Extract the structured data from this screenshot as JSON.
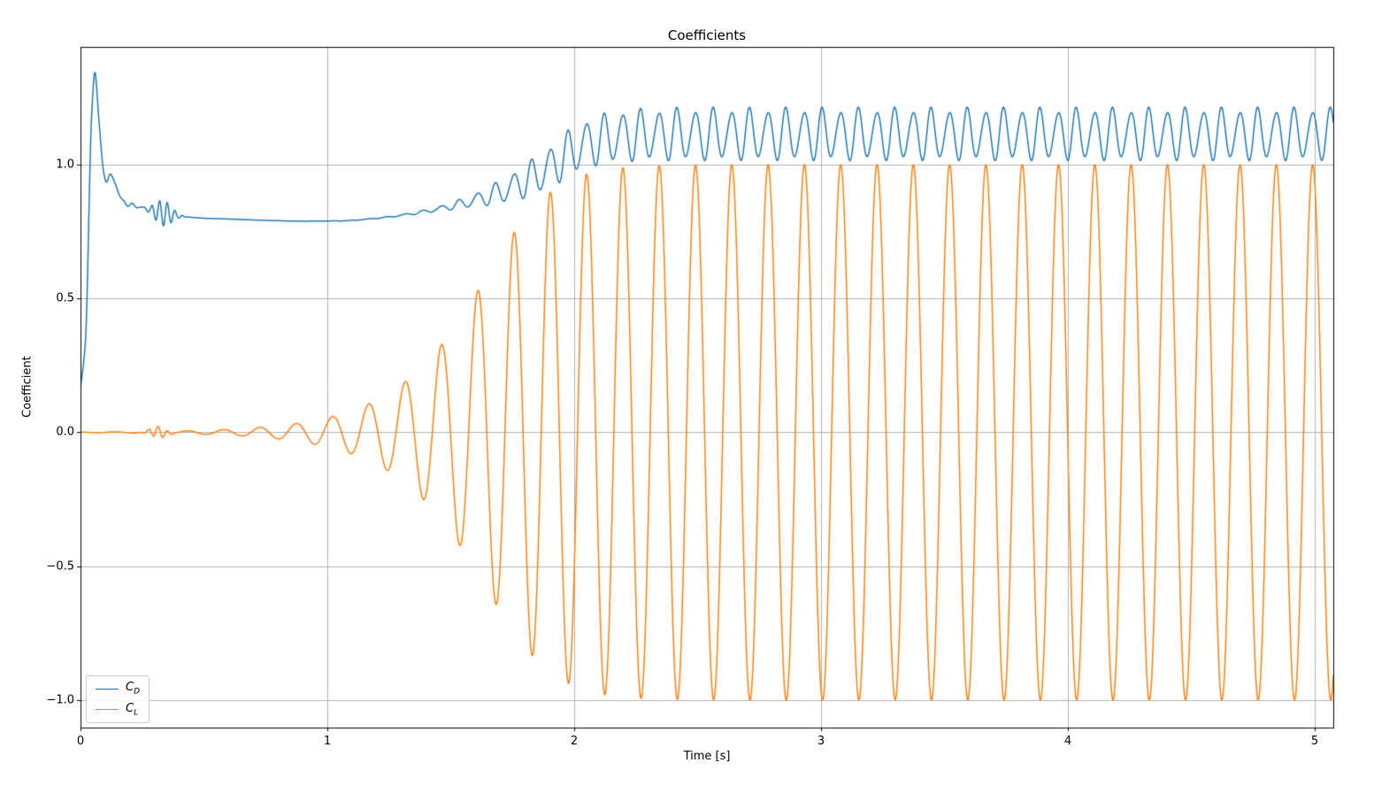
{
  "chart_data": {
    "type": "line",
    "title": "Coefficients",
    "xlabel": "Time [s]",
    "ylabel": "Coefficient",
    "xlim": [
      0,
      5.075
    ],
    "ylim": [
      -1.103,
      1.44
    ],
    "xticks": {
      "values": [
        0,
        1,
        2,
        3,
        4,
        5
      ],
      "labels": [
        "0",
        "1",
        "2",
        "3",
        "4",
        "5"
      ]
    },
    "yticks": {
      "values": [
        -1.0,
        -0.5,
        0.0,
        0.5,
        1.0
      ],
      "labels": [
        "−1.0",
        "−0.5",
        "0.0",
        "0.5",
        "1.0"
      ]
    },
    "grid": true,
    "grid_color": "#b0b0b0",
    "spine_color": "#000000",
    "legend": {
      "position": "lower-left",
      "entries": [
        {
          "label": "C_D",
          "color": "#1f77b4"
        },
        {
          "label": "C_L",
          "color": "#ff7f0e"
        }
      ]
    },
    "shedding_frequency_hz": 6.8,
    "growth_envelope": {
      "a0": 0.001,
      "a_inf": 1.0,
      "sigma": 4.0
    },
    "series": [
      {
        "name": "C_D",
        "label": "C_D",
        "color": "#1f77b4",
        "line_width": 1.5,
        "limit_cycle": {
          "mean": 1.11,
          "peak": 1.21,
          "trough": 1.02
        },
        "model": {
          "mean_keyframes": [
            [
              0,
              0.165
            ],
            [
              0.02,
              0.34
            ],
            [
              0.045,
              1.18
            ],
            [
              0.058,
              1.345
            ],
            [
              0.075,
              1.16
            ],
            [
              0.095,
              0.965
            ],
            [
              0.105,
              0.935
            ],
            [
              0.12,
              0.965
            ],
            [
              0.14,
              0.93
            ],
            [
              0.17,
              0.865
            ],
            [
              0.2,
              0.85
            ],
            [
              0.24,
              0.842
            ],
            [
              0.3,
              0.826
            ],
            [
              0.36,
              0.815
            ],
            [
              0.42,
              0.806
            ],
            [
              0.5,
              0.8
            ],
            [
              0.6,
              0.797
            ],
            [
              0.75,
              0.792
            ],
            [
              0.9,
              0.789
            ],
            [
              1.05,
              0.79
            ],
            [
              1.2,
              0.8
            ],
            [
              1.35,
              0.818
            ],
            [
              1.5,
              0.845
            ],
            [
              1.65,
              0.882
            ],
            [
              1.8,
              0.938
            ],
            [
              1.9,
              0.99
            ],
            [
              2.0,
              1.055
            ],
            [
              2.1,
              1.092
            ],
            [
              2.25,
              1.11
            ],
            [
              2.5,
              1.114
            ],
            [
              5.1,
              1.114
            ]
          ],
          "oscillation": {
            "freq_hz": 13.6,
            "amp": 0.09,
            "phase": 2.4,
            "envelope_power": 2
          },
          "texture": {
            "freq_hz": 20.4,
            "amp": 0.013,
            "phase": 0.3,
            "envelope_power": 2
          },
          "bursts": [
            {
              "center": 0.335,
              "width": 0.048,
              "amp": 0.048,
              "freq_hz": 32,
              "phase": 0
            },
            {
              "center": 0.2,
              "width": 0.04,
              "amp": 0.009,
              "freq_hz": 25,
              "phase": 0
            }
          ]
        }
      },
      {
        "name": "C_L",
        "label": "C_L",
        "color": "#ff7f0e",
        "line_width": 1.5,
        "limit_cycle": {
          "mean": 0.0,
          "peak": 1.0,
          "trough": -1.0
        },
        "model": {
          "mean_keyframes": [
            [
              0,
              0
            ],
            [
              5.1,
              0
            ]
          ],
          "oscillation": {
            "freq_hz": 6.8,
            "amp": 1.0,
            "phase": 1.94,
            "envelope_power": 1
          },
          "bursts": [
            {
              "center": 0.315,
              "width": 0.042,
              "amp": 0.021,
              "freq_hz": 26,
              "phase": 0.5
            }
          ]
        }
      }
    ]
  }
}
